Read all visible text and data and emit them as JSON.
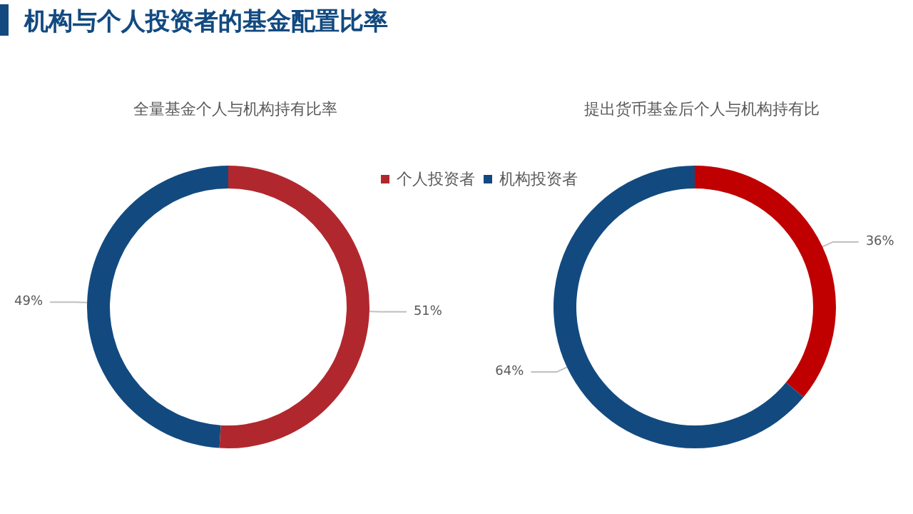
{
  "chart_data": [
    {
      "type": "donut",
      "title": "机构与个人投资者的基金配置比率",
      "subtitle": "全量基金个人与机构持有比率",
      "categories": [
        "个人投资者",
        "机构投资者"
      ],
      "values": [
        51,
        49
      ],
      "value_labels": [
        "51%",
        "49%"
      ],
      "colors": [
        "#b0282e",
        "#124a80"
      ],
      "legend": "top right"
    },
    {
      "type": "donut",
      "title": "提出货币基金后个人与机构持有比",
      "categories": [
        null,
        null
      ],
      "values": [
        36,
        64
      ],
      "value_labels": [
        "36%",
        "64%"
      ],
      "colors": [
        "#c00000",
        "#124a80"
      ]
    }
  ]
}
